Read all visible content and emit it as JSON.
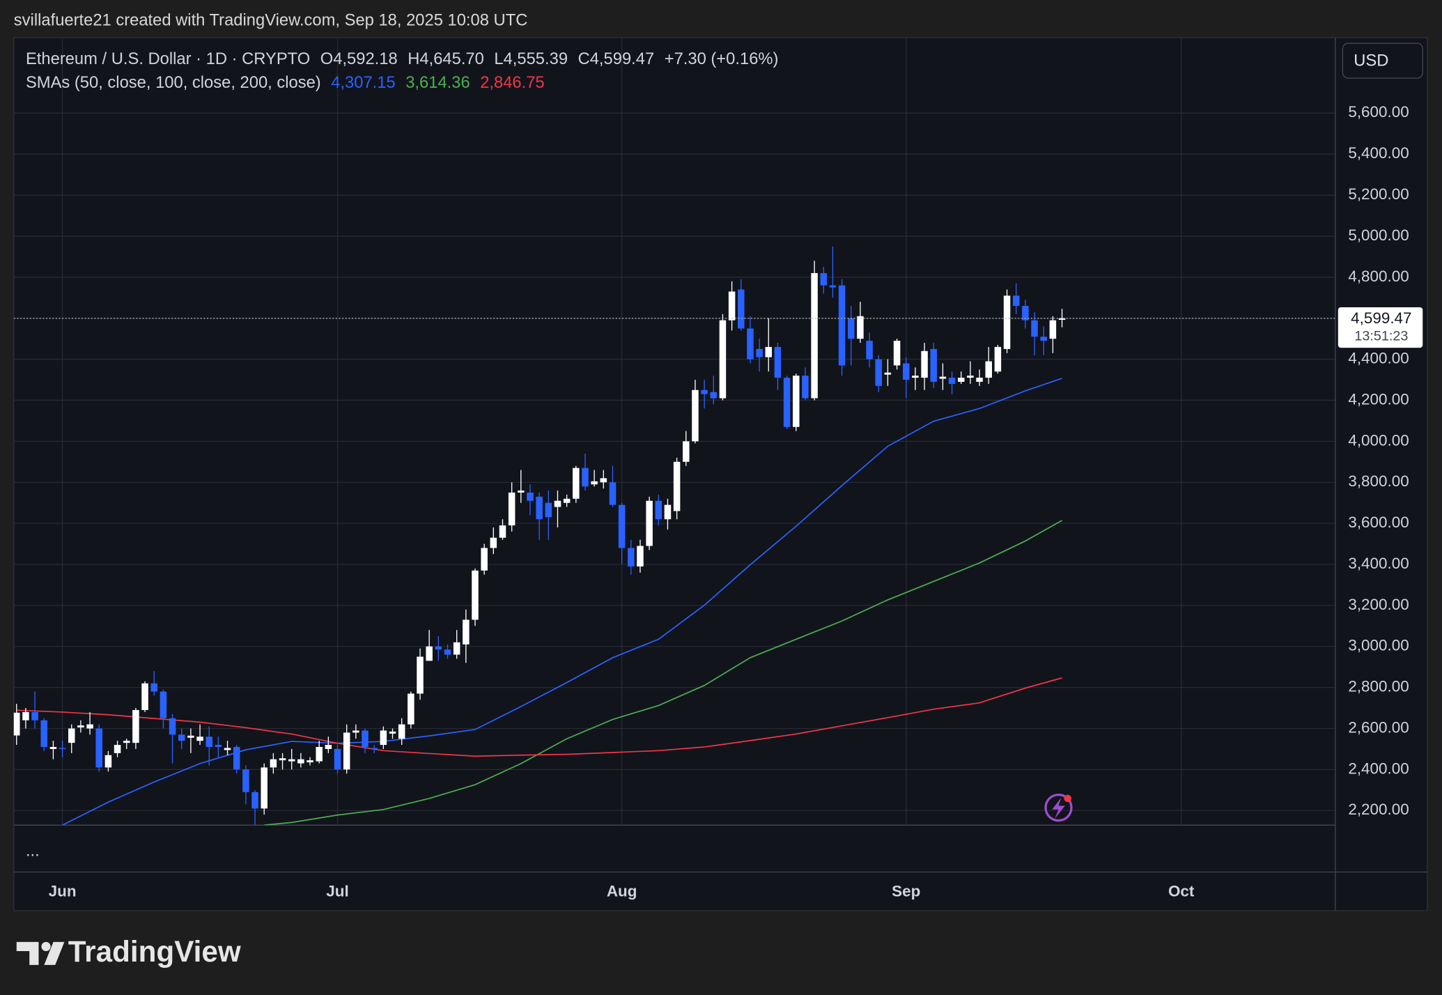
{
  "header": {
    "credit": "svillafuerte21 created with TradingView.com, Sep 18, 2025 10:08 UTC"
  },
  "footer": {
    "brand": "TradingView"
  },
  "chart_data": {
    "type": "candlestick",
    "title": "Ethereum / U.S. Dollar · 1D · CRYPTO",
    "ohlc_labels": [
      {
        "label": "O",
        "value": "4,592.18"
      },
      {
        "label": "H",
        "value": "4,645.70"
      },
      {
        "label": "L",
        "value": "4,555.39"
      },
      {
        "label": "C",
        "value": "4,599.47"
      }
    ],
    "change": "+7.30 (+0.16%)",
    "sma_title": "SMAs (50, close, 100, close, 200, close)",
    "currency": "USD",
    "last_price_label": "4,599.47",
    "countdown": "13:51:23",
    "pane_menu": "...",
    "up_color": "#ffffff",
    "down_color": "#2962ff",
    "grid": true,
    "xlim": [
      -0.3,
      143.8
    ],
    "xticks": [
      {
        "value": 5,
        "label": "Jun"
      },
      {
        "value": 35,
        "label": "Jul"
      },
      {
        "value": 66,
        "label": "Aug"
      },
      {
        "value": 97,
        "label": "Sep"
      },
      {
        "value": 127,
        "label": "Oct"
      }
    ],
    "ylim": [
      2129,
      5963
    ],
    "yticks": [
      {
        "value": 5600,
        "label": "5,600.00"
      },
      {
        "value": 5400,
        "label": "5,400.00"
      },
      {
        "value": 5200,
        "label": "5,200.00"
      },
      {
        "value": 5000,
        "label": "5,000.00"
      },
      {
        "value": 4800,
        "label": "4,800.00"
      },
      {
        "value": 4600,
        "label": "4,600.00"
      },
      {
        "value": 4400,
        "label": "4,400.00"
      },
      {
        "value": 4200,
        "label": "4,200.00"
      },
      {
        "value": 4000,
        "label": "4,000.00"
      },
      {
        "value": 3800,
        "label": "3,800.00"
      },
      {
        "value": 3600,
        "label": "3,600.00"
      },
      {
        "value": 3400,
        "label": "3,400.00"
      },
      {
        "value": 3200,
        "label": "3,200.00"
      },
      {
        "value": 3000,
        "label": "3,000.00"
      },
      {
        "value": 2800,
        "label": "2,800.00"
      },
      {
        "value": 2600,
        "label": "2,600.00"
      },
      {
        "value": 2400,
        "label": "2,400.00"
      },
      {
        "value": 2200,
        "label": "2,200.00"
      }
    ],
    "candles": {
      "open": [
        2566,
        2640,
        2680,
        2640,
        2500,
        2505,
        2530,
        2605,
        2600,
        2600,
        2410,
        2480,
        2530,
        2530,
        2690,
        2820,
        2780,
        2650,
        2570,
        2555,
        2540,
        2560,
        2520,
        2495,
        2510,
        2400,
        2290,
        2210,
        2410,
        2445,
        2440,
        2430,
        2435,
        2440,
        2500,
        2500,
        2400,
        2580,
        2590,
        2505,
        2520,
        2575,
        2550,
        2620,
        2770,
        2930,
        3000,
        2985,
        2960,
        3010,
        3130,
        3370,
        3480,
        3530,
        3590,
        3750,
        3750,
        3730,
        3700,
        3680,
        3700,
        3720,
        3870,
        3790,
        3800,
        3800,
        3690,
        3480,
        3390,
        3490,
        3710,
        3620,
        3660,
        3900,
        4000,
        4250,
        4240,
        4210,
        4590,
        4740,
        4550,
        4450,
        4410,
        4460,
        4310,
        4070,
        4320,
        4210,
        4820,
        4760,
        4760,
        4600,
        4500,
        4490,
        4400,
        4325,
        4370,
        4380,
        4310,
        4310,
        4450,
        4305,
        4310,
        4290,
        4310,
        4290,
        4310,
        4340,
        4450,
        4710,
        4660,
        4590,
        4510,
        4500,
        4592.18
      ],
      "high": [
        2720,
        2700,
        2780,
        2650,
        2540,
        2540,
        2620,
        2640,
        2680,
        2620,
        2490,
        2540,
        2550,
        2700,
        2830,
        2880,
        2790,
        2670,
        2600,
        2600,
        2620,
        2610,
        2560,
        2540,
        2520,
        2420,
        2300,
        2430,
        2480,
        2480,
        2500,
        2480,
        2460,
        2540,
        2560,
        2520,
        2620,
        2620,
        2600,
        2520,
        2610,
        2600,
        2650,
        2780,
        2990,
        3080,
        3050,
        3010,
        3080,
        3180,
        3380,
        3500,
        3580,
        3620,
        3800,
        3860,
        3790,
        3750,
        3760,
        3760,
        3740,
        3880,
        3940,
        3860,
        3860,
        3880,
        3700,
        3520,
        3520,
        3730,
        3740,
        3720,
        3920,
        4050,
        4300,
        4300,
        4320,
        4620,
        4780,
        4790,
        4610,
        4500,
        4600,
        4480,
        4320,
        4330,
        4360,
        4880,
        4850,
        4950,
        4790,
        4660,
        4680,
        4530,
        4420,
        4400,
        4500,
        4410,
        4360,
        4480,
        4480,
        4380,
        4340,
        4340,
        4390,
        4350,
        4460,
        4470,
        4740,
        4770,
        4690,
        4630,
        4560,
        4610,
        4645.7
      ],
      "low": [
        2520,
        2600,
        2600,
        2490,
        2450,
        2460,
        2480,
        2580,
        2570,
        2390,
        2390,
        2460,
        2500,
        2500,
        2680,
        2760,
        2600,
        2430,
        2500,
        2480,
        2520,
        2420,
        2460,
        2470,
        2380,
        2230,
        2130,
        2180,
        2380,
        2400,
        2400,
        2410,
        2420,
        2430,
        2480,
        2380,
        2380,
        2550,
        2480,
        2480,
        2500,
        2550,
        2520,
        2600,
        2740,
        2930,
        2930,
        2940,
        2940,
        2920,
        3100,
        3350,
        3450,
        3520,
        3560,
        3700,
        3640,
        3520,
        3520,
        3580,
        3680,
        3700,
        3760,
        3780,
        3770,
        3680,
        3400,
        3350,
        3360,
        3470,
        3590,
        3570,
        3620,
        3880,
        3990,
        4160,
        4180,
        4200,
        4540,
        4540,
        4380,
        4340,
        4340,
        4250,
        4060,
        4050,
        4200,
        4200,
        4720,
        4700,
        4320,
        4370,
        4480,
        4360,
        4240,
        4270,
        4350,
        4210,
        4250,
        4250,
        4260,
        4250,
        4230,
        4280,
        4280,
        4270,
        4280,
        4330,
        4430,
        4620,
        4550,
        4420,
        4420,
        4430,
        4555.39
      ],
      "close": [
        2677,
        2680,
        2640,
        2510,
        2510,
        2500,
        2600,
        2615,
        2620,
        2410,
        2470,
        2520,
        2540,
        2690,
        2820,
        2780,
        2650,
        2570,
        2540,
        2565,
        2560,
        2510,
        2510,
        2505,
        2400,
        2290,
        2210,
        2410,
        2450,
        2455,
        2450,
        2450,
        2445,
        2510,
        2520,
        2400,
        2580,
        2590,
        2510,
        2500,
        2590,
        2585,
        2620,
        2770,
        2950,
        3000,
        2985,
        2960,
        3020,
        3130,
        3370,
        3480,
        3530,
        3590,
        3750,
        3760,
        3710,
        3620,
        3630,
        3710,
        3720,
        3870,
        3780,
        3805,
        3820,
        3690,
        3480,
        3390,
        3490,
        3710,
        3620,
        3690,
        3900,
        4000,
        4250,
        4230,
        4210,
        4590,
        4730,
        4550,
        4400,
        4410,
        4460,
        4310,
        4070,
        4320,
        4210,
        4820,
        4760,
        4750,
        4370,
        4500,
        4610,
        4400,
        4270,
        4335,
        4490,
        4300,
        4320,
        4440,
        4290,
        4315,
        4280,
        4310,
        4320,
        4310,
        4390,
        4460,
        4710,
        4660,
        4590,
        4510,
        4490,
        4590,
        4599.47
      ]
    },
    "series": [
      {
        "color": "#2962ff",
        "value_label": "4,307.15",
        "x": [
          5,
          10,
          15,
          20,
          25,
          30,
          35,
          40,
          45,
          50,
          55,
          60,
          65,
          70,
          75,
          80,
          85,
          90,
          95,
          100,
          105,
          110,
          114
        ],
        "values": [
          2129,
          2241,
          2339,
          2429,
          2496,
          2537,
          2528,
          2537,
          2564,
          2595,
          2707,
          2824,
          2945,
          3035,
          3201,
          3398,
          3586,
          3784,
          3976,
          4098,
          4160,
          4246,
          4307.15
        ]
      },
      {
        "color": "#4caf50",
        "value_label": "3,614.36",
        "x": [
          27,
          30,
          35,
          40,
          45,
          50,
          55,
          60,
          65,
          70,
          75,
          80,
          85,
          90,
          95,
          100,
          105,
          110,
          114
        ],
        "values": [
          2129,
          2142,
          2178,
          2205,
          2259,
          2326,
          2429,
          2550,
          2644,
          2712,
          2810,
          2945,
          3035,
          3124,
          3227,
          3317,
          3407,
          3514,
          3614.36
        ]
      },
      {
        "color": "#f23645",
        "value_label": "2,846.75",
        "x": [
          0,
          5,
          10,
          15,
          20,
          25,
          30,
          35,
          40,
          45,
          50,
          55,
          60,
          65,
          70,
          75,
          80,
          85,
          90,
          95,
          100,
          105,
          110,
          114
        ],
        "values": [
          2689,
          2680,
          2667,
          2649,
          2631,
          2604,
          2573,
          2528,
          2492,
          2478,
          2465,
          2470,
          2474,
          2483,
          2492,
          2510,
          2541,
          2573,
          2613,
          2653,
          2694,
          2725,
          2797,
          2846.75
        ]
      }
    ]
  }
}
